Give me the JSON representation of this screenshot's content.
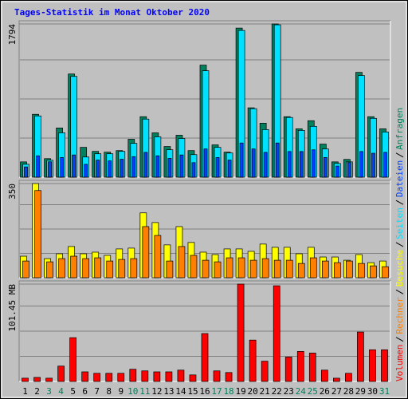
{
  "chart_data": [
    {
      "type": "bar",
      "title": "Tages-Statistik im Monat Oktober 2020",
      "ylim": [
        0,
        1794
      ],
      "yticks": [
        1794
      ],
      "series": [
        {
          "name": "Anfragen",
          "color": "#00805c",
          "values": [
            179,
            736,
            217,
            576,
            1208,
            349,
            302,
            293,
            311,
            444,
            708,
            519,
            359,
            491,
            311,
            1312,
            378,
            293,
            1746,
            812,
            632,
            1794,
            708,
            566,
            661,
            387,
            179,
            208,
            1227,
            708,
            566
          ]
        },
        {
          "name": "Dateien",
          "color": "#0040ff",
          "values": [
            120,
            250,
            180,
            230,
            260,
            150,
            200,
            190,
            210,
            240,
            290,
            250,
            220,
            260,
            170,
            330,
            230,
            200,
            400,
            330,
            290,
            400,
            300,
            300,
            320,
            230,
            130,
            170,
            300,
            280,
            290
          ]
        },
        {
          "name": "Seiten",
          "color": "#00e0ff",
          "values": [
            151,
            717,
            198,
            519,
            1180,
            236,
            274,
            274,
            302,
            396,
            680,
            472,
            321,
            453,
            264,
            1246,
            349,
            283,
            1718,
            802,
            557,
            1784,
            699,
            548,
            595,
            330,
            160,
            179,
            1190,
            689,
            529
          ]
        }
      ]
    },
    {
      "type": "bar",
      "ylim": [
        0,
        350
      ],
      "yticks": [
        350
      ],
      "series": [
        {
          "name": "Besuche",
          "color": "#ffff00",
          "values": [
            80,
            350,
            71,
            89,
            116,
            89,
            95,
            83,
            107,
            110,
            241,
            205,
            122,
            190,
            131,
            95,
            86,
            107,
            107,
            98,
            125,
            113,
            113,
            89,
            113,
            77,
            77,
            65,
            86,
            56,
            62
          ]
        },
        {
          "name": "Rechner",
          "color": "#ff8000",
          "values": [
            62,
            324,
            59,
            71,
            80,
            71,
            74,
            62,
            68,
            71,
            190,
            157,
            62,
            116,
            83,
            65,
            59,
            74,
            74,
            65,
            71,
            65,
            65,
            53,
            74,
            62,
            56,
            62,
            53,
            44,
            41
          ]
        }
      ]
    },
    {
      "type": "bar",
      "ylim": [
        0,
        101.45
      ],
      "yticks": [
        {
          "value": 101.45,
          "label": "101.45 MB"
        }
      ],
      "categories": [
        "1",
        "2",
        "3",
        "4",
        "5",
        "6",
        "7",
        "8",
        "9",
        "10",
        "11",
        "12",
        "13",
        "14",
        "15",
        "16",
        "17",
        "18",
        "19",
        "20",
        "21",
        "22",
        "23",
        "24",
        "25",
        "26",
        "27",
        "28",
        "29",
        "30",
        "31"
      ],
      "category_colors": [
        "#000000",
        "#000000",
        "#00805c",
        "#00805c",
        "#000000",
        "#000000",
        "#000000",
        "#000000",
        "#000000",
        "#00805c",
        "#00805c",
        "#000000",
        "#000000",
        "#000000",
        "#000000",
        "#000000",
        "#00805c",
        "#00805c",
        "#000000",
        "#000000",
        "#000000",
        "#000000",
        "#000000",
        "#00805c",
        "#00805c",
        "#000000",
        "#000000",
        "#000000",
        "#000000",
        "#000000",
        "#00805c"
      ],
      "series": [
        {
          "name": "Volumen",
          "color": "#ff0000",
          "values": [
            3.4,
            4.2,
            3.4,
            16,
            45.6,
            10,
            8.5,
            8.5,
            8.5,
            12.7,
            11,
            10,
            10,
            11.8,
            6.8,
            49.9,
            11,
            9.3,
            101.45,
            43.1,
            21.1,
            99.7,
            25.4,
            31.3,
            29.6,
            11.8,
            3.4,
            8.5,
            51.5,
            33,
            33
          ]
        }
      ]
    }
  ]
}
